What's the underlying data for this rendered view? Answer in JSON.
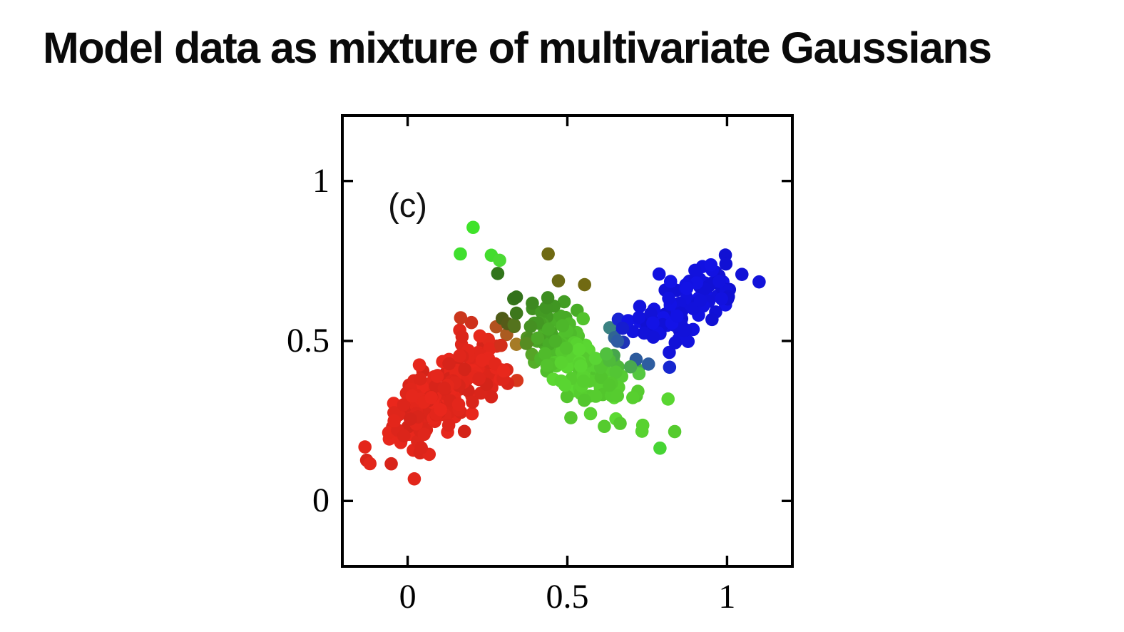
{
  "title": "Model data as mixture of multivariate Gaussians",
  "chart_data": {
    "type": "scatter",
    "title": "",
    "xlabel": "",
    "ylabel": "",
    "annotation": "(c)",
    "annotation_xy": [
      0.0,
      0.92
    ],
    "xlim": [
      -0.2,
      1.2
    ],
    "ylim": [
      -0.2,
      1.2
    ],
    "xticks": [
      {
        "value": 0,
        "label": "0"
      },
      {
        "value": 0.5,
        "label": "0.5"
      },
      {
        "value": 1,
        "label": "1"
      }
    ],
    "yticks": [
      {
        "value": 0,
        "label": "0"
      },
      {
        "value": 0.5,
        "label": "0.5"
      },
      {
        "value": 1,
        "label": "1"
      }
    ],
    "grid": false,
    "legend": null,
    "marker_radius_px": 9.3,
    "axis_color": "#000000",
    "background_color": "#ffffff",
    "palette": {
      "red": "#e12618",
      "green_bright": "#55d230",
      "green_dark": "#3f8f2b",
      "blue": "#1212de",
      "red_green_mix_olive": "#6e6914",
      "green_blue_mix_teal": "#2d6e96"
    },
    "seed": 20240613,
    "clusters": [
      {
        "name": "red",
        "n": 215,
        "mean": [
          0.135,
          0.345
        ],
        "dir": [
          0.76,
          0.65
        ],
        "sigma_along": 0.12,
        "sigma_across": 0.05,
        "base_rgb": [
          225,
          38,
          27
        ]
      },
      {
        "name": "green",
        "n": 175,
        "mean": [
          0.52,
          0.46
        ],
        "dir": [
          0.76,
          -0.65
        ],
        "sigma_along": 0.12,
        "sigma_across": 0.055,
        "base_rgb": [
          88,
          210,
          48
        ],
        "shade_dark_end": 0.58
      },
      {
        "name": "blue",
        "n": 112,
        "mean": [
          0.86,
          0.615
        ],
        "dir": [
          0.815,
          0.58
        ],
        "sigma_along": 0.11,
        "sigma_across": 0.042,
        "base_rgb": [
          18,
          18,
          222
        ]
      }
    ],
    "outlier_points": [
      {
        "x": 0.205,
        "y": 0.855,
        "color": "#3fe32a"
      },
      {
        "x": 0.165,
        "y": 0.772,
        "color": "#3fdf2e"
      },
      {
        "x": 0.262,
        "y": 0.768,
        "color": "#43dc2e"
      },
      {
        "x": 0.288,
        "y": 0.752,
        "color": "#4bd934"
      },
      {
        "x": 0.44,
        "y": 0.772,
        "color": "#6f6a13"
      },
      {
        "x": 0.472,
        "y": 0.688,
        "color": "#6a6a15"
      },
      {
        "x": 0.554,
        "y": 0.676,
        "color": "#716a12"
      },
      {
        "x": 0.79,
        "y": 0.165,
        "color": "#46d434"
      },
      {
        "x": 0.82,
        "y": 0.418,
        "color": "#1626cf"
      }
    ]
  }
}
